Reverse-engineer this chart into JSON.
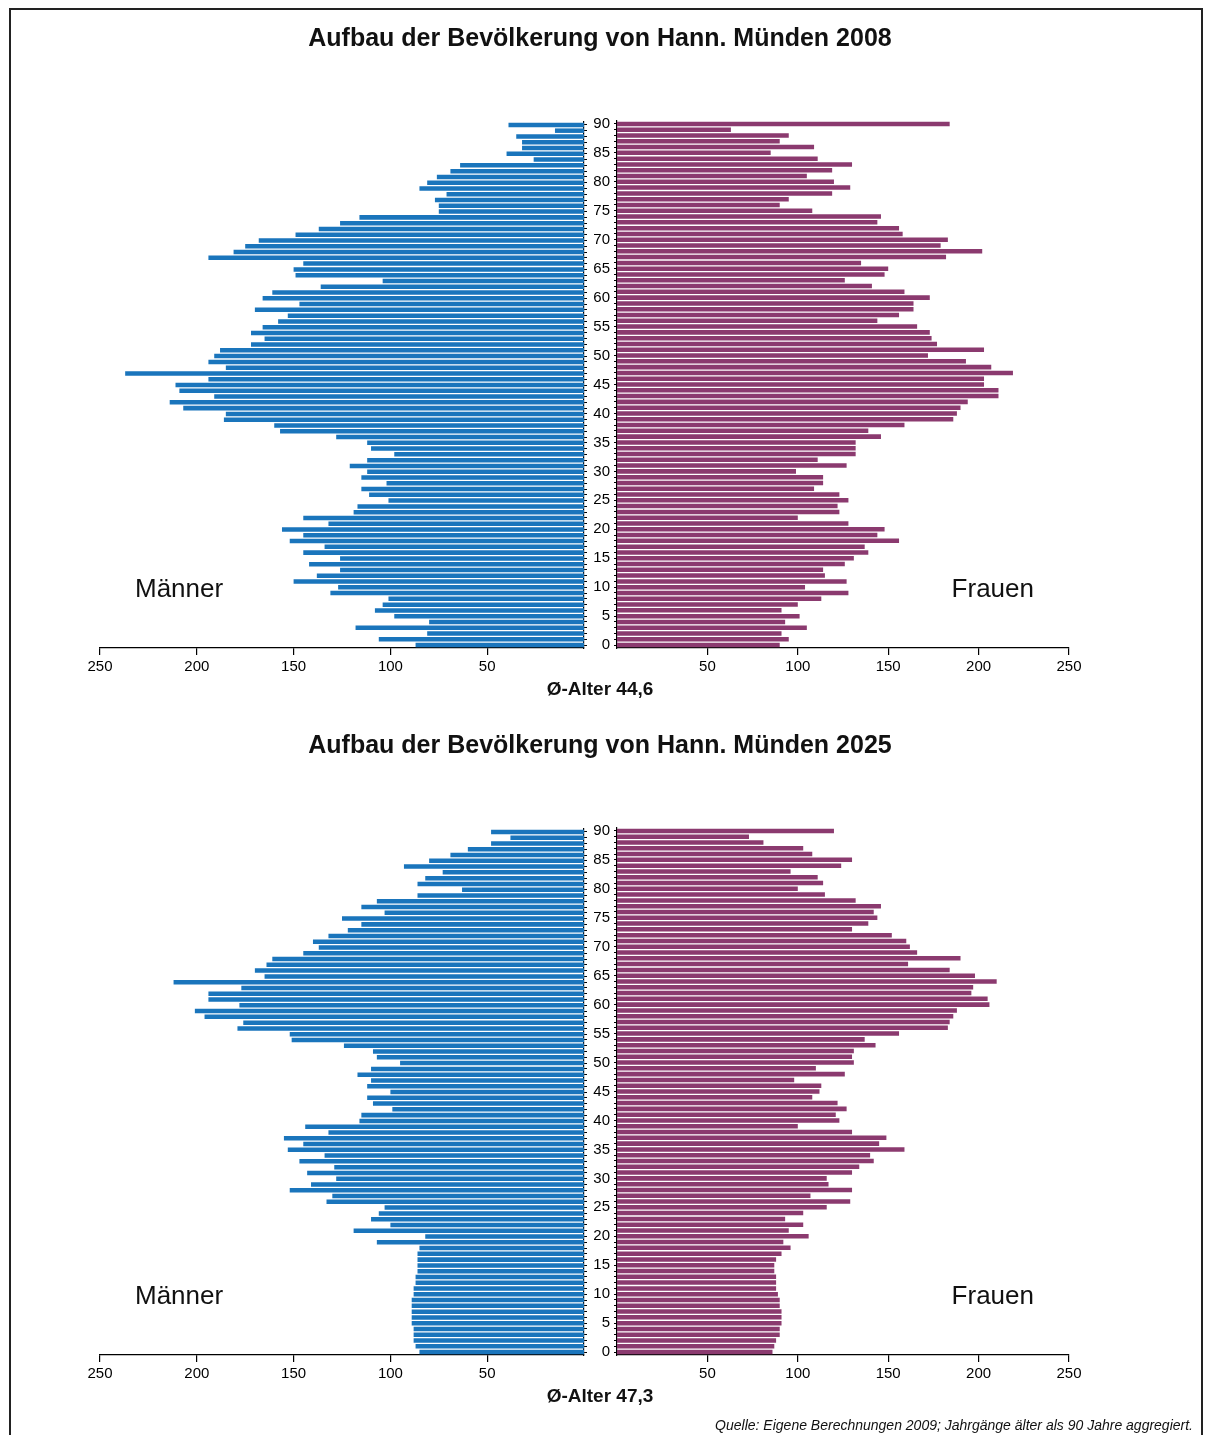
{
  "chart_data": [
    {
      "type": "bar",
      "orientation": "horizontal",
      "title": "Aufbau der Bevölkerung von Hann. Münden 2008",
      "annotations": [
        "Ø-Alter 44,6"
      ],
      "categories": [
        "90",
        null,
        null,
        null,
        null,
        "85",
        null,
        null,
        null,
        null,
        "80",
        null,
        null,
        null,
        null,
        "75",
        null,
        null,
        null,
        null,
        "70",
        null,
        null,
        null,
        null,
        "65",
        null,
        null,
        null,
        null,
        "60",
        null,
        null,
        null,
        null,
        "55",
        null,
        null,
        null,
        null,
        "50",
        null,
        null,
        null,
        null,
        "45",
        null,
        null,
        null,
        null,
        "40",
        null,
        null,
        null,
        null,
        "35",
        null,
        null,
        null,
        null,
        "30",
        null,
        null,
        null,
        null,
        "25",
        null,
        null,
        null,
        null,
        "20",
        null,
        null,
        null,
        null,
        "15",
        null,
        null,
        null,
        null,
        "10",
        null,
        null,
        null,
        null,
        "5",
        null,
        null,
        null,
        null,
        "0"
      ],
      "xlim": [
        250,
        0
      ],
      "xticks": [
        250,
        200,
        150,
        100,
        50
      ],
      "tick_labels": "x",
      "legend": false,
      "series": [
        {
          "name": "Männer",
          "color": "#1a75bc",
          "values": [
            39,
            15,
            35,
            32,
            32,
            40,
            26,
            64,
            69,
            76,
            81,
            85,
            71,
            77,
            75,
            75,
            116,
            126,
            137,
            149,
            168,
            175,
            181,
            194,
            145,
            150,
            149,
            104,
            136,
            161,
            166,
            147,
            170,
            153,
            158,
            166,
            172,
            165,
            172,
            188,
            191,
            194,
            185,
            237,
            194,
            211,
            209,
            191,
            214,
            207,
            185,
            186,
            160,
            157,
            128,
            112,
            110,
            98,
            112,
            121,
            112,
            115,
            102,
            115,
            111,
            101,
            117,
            119,
            145,
            132,
            156,
            145,
            152,
            134,
            145,
            126,
            142,
            126,
            138,
            150,
            127,
            131,
            101,
            104,
            108,
            98,
            80,
            118,
            81,
            106,
            87
          ]
        }
      ]
    },
    {
      "type": "bar",
      "orientation": "horizontal",
      "categories": [
        "90",
        null,
        null,
        null,
        null,
        "85",
        null,
        null,
        null,
        null,
        "80",
        null,
        null,
        null,
        null,
        "75",
        null,
        null,
        null,
        null,
        "70",
        null,
        null,
        null,
        null,
        "65",
        null,
        null,
        null,
        null,
        "60",
        null,
        null,
        null,
        null,
        "55",
        null,
        null,
        null,
        null,
        "50",
        null,
        null,
        null,
        null,
        "45",
        null,
        null,
        null,
        null,
        "40",
        null,
        null,
        null,
        null,
        "35",
        null,
        null,
        null,
        null,
        "30",
        null,
        null,
        null,
        null,
        "25",
        null,
        null,
        null,
        null,
        "20",
        null,
        null,
        null,
        null,
        "15",
        null,
        null,
        null,
        null,
        "10",
        null,
        null,
        null,
        null,
        "5",
        null,
        null,
        null,
        null,
        "0"
      ],
      "xlim": [
        0,
        250
      ],
      "xticks": [
        50,
        100,
        150,
        200,
        250
      ],
      "legend": false,
      "series": [
        {
          "name": "Frauen",
          "color": "#8b3a6f",
          "values": [
            184,
            63,
            95,
            90,
            109,
            85,
            111,
            130,
            119,
            105,
            120,
            129,
            119,
            95,
            90,
            108,
            146,
            144,
            156,
            158,
            183,
            179,
            202,
            182,
            135,
            150,
            148,
            126,
            141,
            159,
            173,
            164,
            164,
            156,
            144,
            166,
            173,
            174,
            177,
            203,
            172,
            193,
            207,
            219,
            203,
            203,
            211,
            211,
            194,
            190,
            188,
            186,
            159,
            139,
            146,
            132,
            132,
            132,
            111,
            127,
            99,
            114,
            114,
            109,
            123,
            128,
            122,
            123,
            100,
            128,
            148,
            144,
            156,
            137,
            139,
            131,
            126,
            114,
            115,
            127,
            104,
            128,
            113,
            100,
            91,
            101,
            93,
            105,
            91,
            95,
            90
          ]
        }
      ]
    },
    {
      "type": "bar",
      "orientation": "horizontal",
      "title": "Aufbau der Bevölkerung von Hann. Münden 2025",
      "annotations": [
        "Ø-Alter 47,3",
        "Quelle: Eigene Berechnungen 2009; Jahrgänge älter als 90 Jahre aggregiert."
      ],
      "categories": [
        "90",
        null,
        null,
        null,
        null,
        "85",
        null,
        null,
        null,
        null,
        "80",
        null,
        null,
        null,
        null,
        "75",
        null,
        null,
        null,
        null,
        "70",
        null,
        null,
        null,
        null,
        "65",
        null,
        null,
        null,
        null,
        "60",
        null,
        null,
        null,
        null,
        "55",
        null,
        null,
        null,
        null,
        "50",
        null,
        null,
        null,
        null,
        "45",
        null,
        null,
        null,
        null,
        "40",
        null,
        null,
        null,
        null,
        "35",
        null,
        null,
        null,
        null,
        "30",
        null,
        null,
        null,
        null,
        "25",
        null,
        null,
        null,
        null,
        "20",
        null,
        null,
        null,
        null,
        "15",
        null,
        null,
        null,
        null,
        "10",
        null,
        null,
        null,
        null,
        "5",
        null,
        null,
        null,
        null,
        "0"
      ],
      "xlim": [
        250,
        0
      ],
      "xticks": [
        250,
        200,
        150,
        100,
        50
      ],
      "tick_labels": "x",
      "legend": false,
      "series": [
        {
          "name": "Männer",
          "color": "#1a75bc",
          "values": [
            48,
            38,
            48,
            60,
            69,
            80,
            93,
            73,
            82,
            86,
            63,
            86,
            107,
            115,
            103,
            125,
            115,
            122,
            132,
            140,
            137,
            145,
            161,
            164,
            170,
            165,
            212,
            177,
            194,
            194,
            178,
            201,
            196,
            176,
            179,
            152,
            151,
            124,
            109,
            107,
            95,
            110,
            117,
            110,
            112,
            100,
            112,
            109,
            99,
            115,
            116,
            144,
            132,
            155,
            145,
            153,
            134,
            147,
            129,
            143,
            128,
            141,
            152,
            130,
            133,
            103,
            106,
            110,
            100,
            119,
            82,
            107,
            85,
            86,
            86,
            86,
            86,
            87,
            87,
            88,
            88,
            89,
            89,
            89,
            89,
            89,
            88,
            88,
            88,
            87,
            85
          ]
        }
      ]
    },
    {
      "type": "bar",
      "orientation": "horizontal",
      "categories": [
        "90",
        null,
        null,
        null,
        null,
        "85",
        null,
        null,
        null,
        null,
        "80",
        null,
        null,
        null,
        null,
        "75",
        null,
        null,
        null,
        null,
        "70",
        null,
        null,
        null,
        null,
        "65",
        null,
        null,
        null,
        null,
        "60",
        null,
        null,
        null,
        null,
        "55",
        null,
        null,
        null,
        null,
        "50",
        null,
        null,
        null,
        null,
        "45",
        null,
        null,
        null,
        null,
        "40",
        null,
        null,
        null,
        null,
        "35",
        null,
        null,
        null,
        null,
        "30",
        null,
        null,
        null,
        null,
        "25",
        null,
        null,
        null,
        null,
        "20",
        null,
        null,
        null,
        null,
        "15",
        null,
        null,
        null,
        null,
        "10",
        null,
        null,
        null,
        null,
        "5",
        null,
        null,
        null,
        null,
        "0"
      ],
      "xlim": [
        0,
        250
      ],
      "xticks": [
        50,
        100,
        150,
        200,
        250
      ],
      "legend": false,
      "series": [
        {
          "name": "Frauen",
          "color": "#8b3a6f",
          "values": [
            120,
            73,
            81,
            103,
            108,
            130,
            124,
            96,
            111,
            114,
            100,
            115,
            132,
            146,
            142,
            144,
            139,
            130,
            152,
            160,
            162,
            166,
            190,
            161,
            184,
            198,
            210,
            197,
            196,
            205,
            206,
            188,
            186,
            184,
            183,
            156,
            137,
            143,
            131,
            130,
            131,
            110,
            126,
            98,
            113,
            112,
            108,
            122,
            127,
            121,
            123,
            100,
            130,
            149,
            145,
            159,
            140,
            142,
            134,
            130,
            116,
            117,
            130,
            107,
            129,
            116,
            103,
            93,
            103,
            95,
            106,
            92,
            96,
            91,
            88,
            87,
            87,
            88,
            88,
            88,
            89,
            90,
            90,
            91,
            91,
            91,
            90,
            90,
            88,
            87,
            86
          ]
        }
      ]
    }
  ]
}
